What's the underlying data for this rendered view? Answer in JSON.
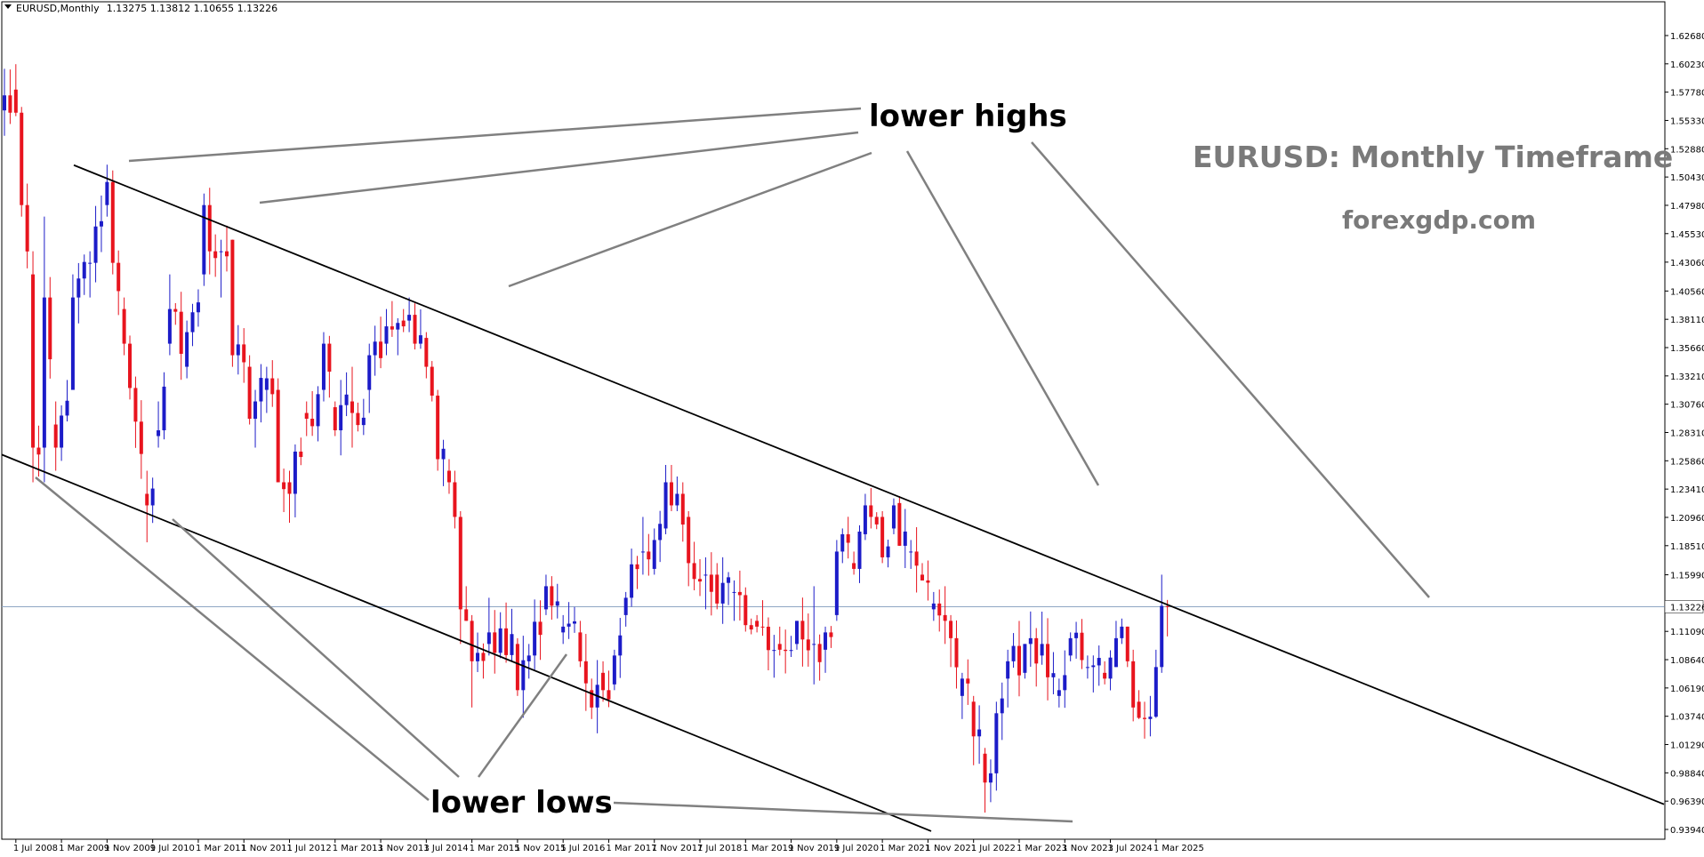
{
  "header": {
    "symbol": "EURUSD,Monthly",
    "ohlc": "1.13275 1.13812 1.10655 1.13226"
  },
  "watermark": {
    "title": "EURUSD: Monthly Timeframe",
    "site": "forexgdp.com"
  },
  "annotations": {
    "highs_label": "lower highs",
    "lows_label": "lower lows"
  },
  "current_price_label": "1.13226",
  "colors": {
    "bull": "#1c1cc8",
    "bear": "#e8141e",
    "channel": "#000000",
    "pointer": "#808080",
    "price_line": "#8fa6c4",
    "watermark": "#7a7a7a"
  },
  "chart_data": {
    "type": "candlestick",
    "symbol": "EURUSD",
    "timeframe": "Monthly",
    "ylim": [
      0.9394,
      1.6468
    ],
    "y_ticks": [
      "1.62680",
      "1.60230",
      "1.57780",
      "1.55330",
      "1.52880",
      "1.50430",
      "1.47980",
      "1.45530",
      "1.43060",
      "1.40560",
      "1.38110",
      "1.35660",
      "1.33210",
      "1.30760",
      "1.28310",
      "1.25860",
      "1.23410",
      "1.20960",
      "1.18510",
      "1.15990",
      "1.13226",
      "1.11090",
      "1.08640",
      "1.06190",
      "1.03740",
      "1.01290",
      "0.98840",
      "0.96390",
      "0.93940"
    ],
    "x_ticks": [
      "1 Jul 2008",
      "1 Mar 2009",
      "1 Nov 2009",
      "1 Jul 2010",
      "1 Mar 2011",
      "1 Nov 2011",
      "1 Jul 2012",
      "1 Mar 2013",
      "1 Nov 2013",
      "1 Jul 2014",
      "1 Mar 2015",
      "1 Nov 2015",
      "1 Jul 2016",
      "1 Mar 2017",
      "1 Nov 2017",
      "1 Jul 2018",
      "1 Mar 2019",
      "1 Nov 2019",
      "1 Jul 2020",
      "1 Mar 2021",
      "1 Nov 2021",
      "1 Jul 2022",
      "1 Mar 2023",
      "1 Nov 2023",
      "1 Jul 2024",
      "1 Mar 2025"
    ],
    "first_bar": "2008-05",
    "ohlc_anchors": [
      [
        "2008-05",
        1.562,
        1.598,
        1.54,
        1.575
      ],
      [
        "2008-07",
        1.58,
        1.602,
        1.557,
        1.56
      ],
      [
        "2008-08",
        1.56,
        1.565,
        1.47,
        1.48
      ],
      [
        "2008-10",
        1.42,
        1.44,
        1.24,
        1.27
      ],
      [
        "2008-12",
        1.27,
        1.47,
        1.24,
        1.4
      ],
      [
        "2009-02",
        1.29,
        1.31,
        1.25,
        1.27
      ],
      [
        "2009-05",
        1.32,
        1.42,
        1.32,
        1.4
      ],
      [
        "2009-08",
        1.43,
        1.44,
        1.4,
        1.43
      ],
      [
        "2009-11",
        1.48,
        1.515,
        1.47,
        1.5
      ],
      [
        "2009-12",
        1.5,
        1.51,
        1.42,
        1.43
      ],
      [
        "2010-02",
        1.39,
        1.4,
        1.35,
        1.36
      ],
      [
        "2010-06",
        1.23,
        1.25,
        1.188,
        1.22
      ],
      [
        "2010-08",
        1.28,
        1.31,
        1.27,
        1.285
      ],
      [
        "2010-10",
        1.36,
        1.42,
        1.35,
        1.39
      ],
      [
        "2011-01",
        1.34,
        1.38,
        1.33,
        1.37
      ],
      [
        "2011-04",
        1.42,
        1.49,
        1.41,
        1.48
      ],
      [
        "2011-05",
        1.48,
        1.495,
        1.42,
        1.44
      ],
      [
        "2011-07",
        1.44,
        1.45,
        1.4,
        1.44
      ],
      [
        "2011-09",
        1.45,
        1.45,
        1.34,
        1.35
      ],
      [
        "2011-12",
        1.34,
        1.35,
        1.29,
        1.295
      ],
      [
        "2012-01",
        1.295,
        1.32,
        1.27,
        1.31
      ],
      [
        "2012-03",
        1.32,
        1.34,
        1.3,
        1.33
      ],
      [
        "2012-05",
        1.32,
        1.33,
        1.24,
        1.24
      ],
      [
        "2012-07",
        1.24,
        1.25,
        1.205,
        1.23
      ],
      [
        "2012-10",
        1.3,
        1.31,
        1.28,
        1.295
      ],
      [
        "2013-01",
        1.32,
        1.37,
        1.31,
        1.36
      ],
      [
        "2013-03",
        1.305,
        1.31,
        1.28,
        1.285
      ],
      [
        "2013-06",
        1.31,
        1.34,
        1.27,
        1.3
      ],
      [
        "2013-09",
        1.32,
        1.36,
        1.3,
        1.35
      ],
      [
        "2013-12",
        1.36,
        1.39,
        1.35,
        1.375
      ],
      [
        "2014-03",
        1.38,
        1.39,
        1.37,
        1.375
      ],
      [
        "2014-04",
        1.38,
        1.4,
        1.37,
        1.385
      ],
      [
        "2014-05",
        1.385,
        1.395,
        1.355,
        1.36
      ],
      [
        "2014-07",
        1.365,
        1.37,
        1.33,
        1.34
      ],
      [
        "2014-08",
        1.34,
        1.345,
        1.31,
        1.315
      ],
      [
        "2014-09",
        1.315,
        1.32,
        1.25,
        1.26
      ],
      [
        "2014-11",
        1.25,
        1.26,
        1.23,
        1.24
      ],
      [
        "2014-12",
        1.24,
        1.25,
        1.2,
        1.21
      ],
      [
        "2015-01",
        1.21,
        1.215,
        1.1,
        1.13
      ],
      [
        "2015-02",
        1.13,
        1.15,
        1.12,
        1.12
      ],
      [
        "2015-03",
        1.12,
        1.125,
        1.045,
        1.085
      ],
      [
        "2015-06",
        1.1,
        1.14,
        1.09,
        1.11
      ],
      [
        "2015-11",
        1.1,
        1.105,
        1.055,
        1.06
      ],
      [
        "2016-01",
        1.085,
        1.1,
        1.07,
        1.09
      ],
      [
        "2016-04",
        1.13,
        1.16,
        1.125,
        1.15
      ],
      [
        "2016-07",
        1.11,
        1.125,
        1.1,
        1.115
      ],
      [
        "2016-10",
        1.11,
        1.12,
        1.08,
        1.085
      ],
      [
        "2016-12",
        1.06,
        1.07,
        1.035,
        1.045
      ],
      [
        "2017-02",
        1.075,
        1.085,
        1.05,
        1.06
      ],
      [
        "2017-04",
        1.065,
        1.095,
        1.06,
        1.09
      ],
      [
        "2017-06",
        1.125,
        1.145,
        1.115,
        1.14
      ],
      [
        "2017-09",
        1.18,
        1.21,
        1.16,
        1.18
      ],
      [
        "2017-11",
        1.165,
        1.2,
        1.16,
        1.19
      ],
      [
        "2018-01",
        1.2,
        1.255,
        1.195,
        1.24
      ],
      [
        "2018-02",
        1.24,
        1.255,
        1.215,
        1.22
      ],
      [
        "2018-03",
        1.22,
        1.245,
        1.215,
        1.23
      ],
      [
        "2018-05",
        1.21,
        1.215,
        1.15,
        1.17
      ],
      [
        "2018-08",
        1.16,
        1.175,
        1.13,
        1.16
      ],
      [
        "2018-10",
        1.16,
        1.17,
        1.13,
        1.135
      ],
      [
        "2019-01",
        1.145,
        1.155,
        1.12,
        1.145
      ],
      [
        "2019-05",
        1.12,
        1.125,
        1.11,
        1.115
      ],
      [
        "2019-09",
        1.1,
        1.115,
        1.09,
        1.095
      ],
      [
        "2019-12",
        1.1,
        1.12,
        1.095,
        1.12
      ],
      [
        "2020-03",
        1.1,
        1.15,
        1.065,
        1.1
      ],
      [
        "2020-05",
        1.095,
        1.115,
        1.075,
        1.11
      ],
      [
        "2020-07",
        1.125,
        1.19,
        1.12,
        1.18
      ],
      [
        "2020-08",
        1.18,
        1.2,
        1.17,
        1.195
      ],
      [
        "2020-10",
        1.17,
        1.18,
        1.16,
        1.165
      ],
      [
        "2020-12",
        1.195,
        1.23,
        1.19,
        1.22
      ],
      [
        "2021-01",
        1.22,
        1.235,
        1.2,
        1.21
      ],
      [
        "2021-03",
        1.21,
        1.215,
        1.17,
        1.175
      ],
      [
        "2021-05",
        1.2,
        1.226,
        1.195,
        1.22
      ],
      [
        "2021-06",
        1.222,
        1.228,
        1.185,
        1.185
      ],
      [
        "2021-08",
        1.18,
        1.19,
        1.165,
        1.18
      ],
      [
        "2021-10",
        1.16,
        1.17,
        1.155,
        1.155
      ],
      [
        "2021-12",
        1.13,
        1.145,
        1.12,
        1.135
      ],
      [
        "2022-02",
        1.125,
        1.15,
        1.1,
        1.12
      ],
      [
        "2022-03",
        1.12,
        1.125,
        1.08,
        1.105
      ],
      [
        "2022-05",
        1.055,
        1.075,
        1.035,
        1.07
      ],
      [
        "2022-07",
        1.05,
        1.055,
        0.995,
        1.02
      ],
      [
        "2022-09",
        1.005,
        1.01,
        0.954,
        0.98
      ],
      [
        "2022-10",
        0.98,
        1.0,
        0.963,
        0.988
      ],
      [
        "2022-11",
        0.988,
        1.05,
        0.973,
        1.04
      ],
      [
        "2023-01",
        1.07,
        1.095,
        1.045,
        1.085
      ],
      [
        "2023-04",
        1.075,
        1.1,
        1.07,
        1.1
      ],
      [
        "2023-07",
        1.09,
        1.128,
        1.082,
        1.1
      ],
      [
        "2023-10",
        1.055,
        1.07,
        1.045,
        1.06
      ],
      [
        "2023-12",
        1.09,
        1.11,
        1.085,
        1.105
      ],
      [
        "2024-03",
        1.08,
        1.09,
        1.07,
        1.08
      ],
      [
        "2024-06",
        1.075,
        1.085,
        1.065,
        1.07
      ],
      [
        "2024-08",
        1.08,
        1.12,
        1.08,
        1.105
      ],
      [
        "2024-09",
        1.105,
        1.122,
        1.1,
        1.115
      ],
      [
        "2024-10",
        1.115,
        1.115,
        1.08,
        1.085
      ],
      [
        "2024-11",
        1.085,
        1.095,
        1.033,
        1.045
      ],
      [
        "2024-12",
        1.05,
        1.06,
        1.035,
        1.036
      ],
      [
        "2025-01",
        1.036,
        1.05,
        1.018,
        1.035
      ],
      [
        "2025-02",
        1.035,
        1.055,
        1.02,
        1.037
      ],
      [
        "2025-03",
        1.037,
        1.095,
        1.036,
        1.08
      ],
      [
        "2025-04",
        1.08,
        1.16,
        1.075,
        1.133
      ],
      [
        "2025-05",
        1.13275,
        1.13812,
        1.10655,
        1.13226
      ]
    ],
    "channel": {
      "upper": [
        {
          "date": "2009-10",
          "price": 1.505
        },
        {
          "date": "2025-05",
          "price": 1.134
        }
      ],
      "lower": [
        {
          "date": "2008-05",
          "price": 1.263
        },
        {
          "date": "2021-10",
          "price": 0.941
        }
      ]
    },
    "current_price": 1.13226
  }
}
